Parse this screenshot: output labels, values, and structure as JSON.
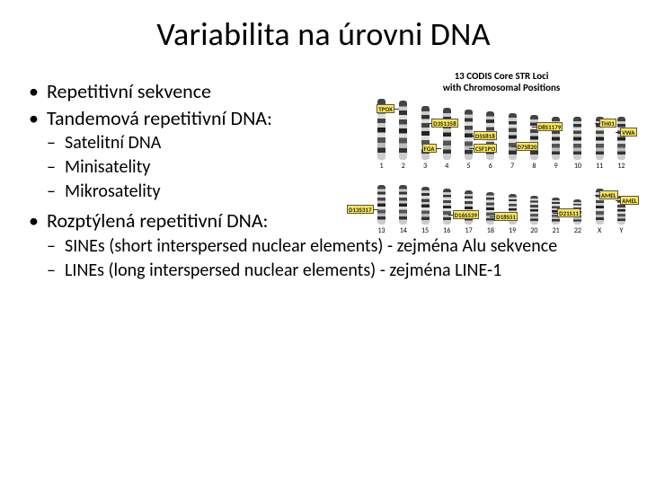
{
  "title": "Variabilita na úrovni DNA",
  "bullets": {
    "b1": "Repetitivní sekvence",
    "b2": "Tandemová repetitivní DNA:",
    "b2s1": "Satelitní DNA",
    "b2s2": "Minisatelity",
    "b2s3": "Mikrosatelity",
    "b3": "Rozptýlená repetitivní DNA:",
    "b3s1": "SINEs (short interspersed nuclear elements) - zejména Alu sekvence",
    "b3s2": "LINEs (long interspersed nuclear elements) - zejména LINE-1"
  },
  "figure": {
    "title_l1": "13 CODIS Core STR Loci",
    "title_l2": "with Chromosomal Positions",
    "row1_heights": [
      68,
      66,
      60,
      58,
      56,
      54,
      52,
      50,
      48,
      48,
      48,
      48
    ],
    "row1_labels": [
      "1",
      "2",
      "3",
      "4",
      "5",
      "6",
      "7",
      "8",
      "9",
      "10",
      "11",
      "12"
    ],
    "row2_heights": [
      44,
      44,
      42,
      40,
      38,
      36,
      34,
      32,
      30,
      28,
      40,
      32
    ],
    "row2_labels": [
      "13",
      "14",
      "15",
      "16",
      "17",
      "18",
      "19",
      "20",
      "21",
      "22",
      "X",
      "Y"
    ],
    "marker_bg": "#ffe850",
    "markers_r1": [
      {
        "text": "TPOX",
        "chrom": 2,
        "side": "left",
        "y": 8
      },
      {
        "text": "D3S1358",
        "chrom": 3,
        "side": "right",
        "y": 18
      },
      {
        "text": "FGA",
        "chrom": 4,
        "side": "left",
        "y": 44
      },
      {
        "text": "D5S818",
        "chrom": 5,
        "side": "right",
        "y": 28
      },
      {
        "text": "CSF1PO",
        "chrom": 5,
        "side": "right",
        "y": 42
      },
      {
        "text": "D7S820",
        "chrom": 7,
        "side": "right",
        "y": 36
      },
      {
        "text": "D8S1179",
        "chrom": 8,
        "side": "right",
        "y": 12
      },
      {
        "text": "TH01",
        "chrom": 11,
        "side": "right",
        "y": 6
      },
      {
        "text": "VWA",
        "chrom": 12,
        "side": "right",
        "y": 16
      }
    ],
    "markers_r2": [
      {
        "text": "D13S317",
        "chrom": 13,
        "side": "left",
        "y": 26
      },
      {
        "text": "D16S539",
        "chrom": 16,
        "side": "right",
        "y": 28
      },
      {
        "text": "D18S51",
        "chrom": 18,
        "side": "right",
        "y": 26
      },
      {
        "text": "D21S11",
        "chrom": 21,
        "side": "right",
        "y": 16
      },
      {
        "text": "AMEL",
        "chrom": 23,
        "side": "right",
        "y": 6
      },
      {
        "text": "AMEL",
        "chrom": 24,
        "side": "right",
        "y": 4
      }
    ]
  }
}
